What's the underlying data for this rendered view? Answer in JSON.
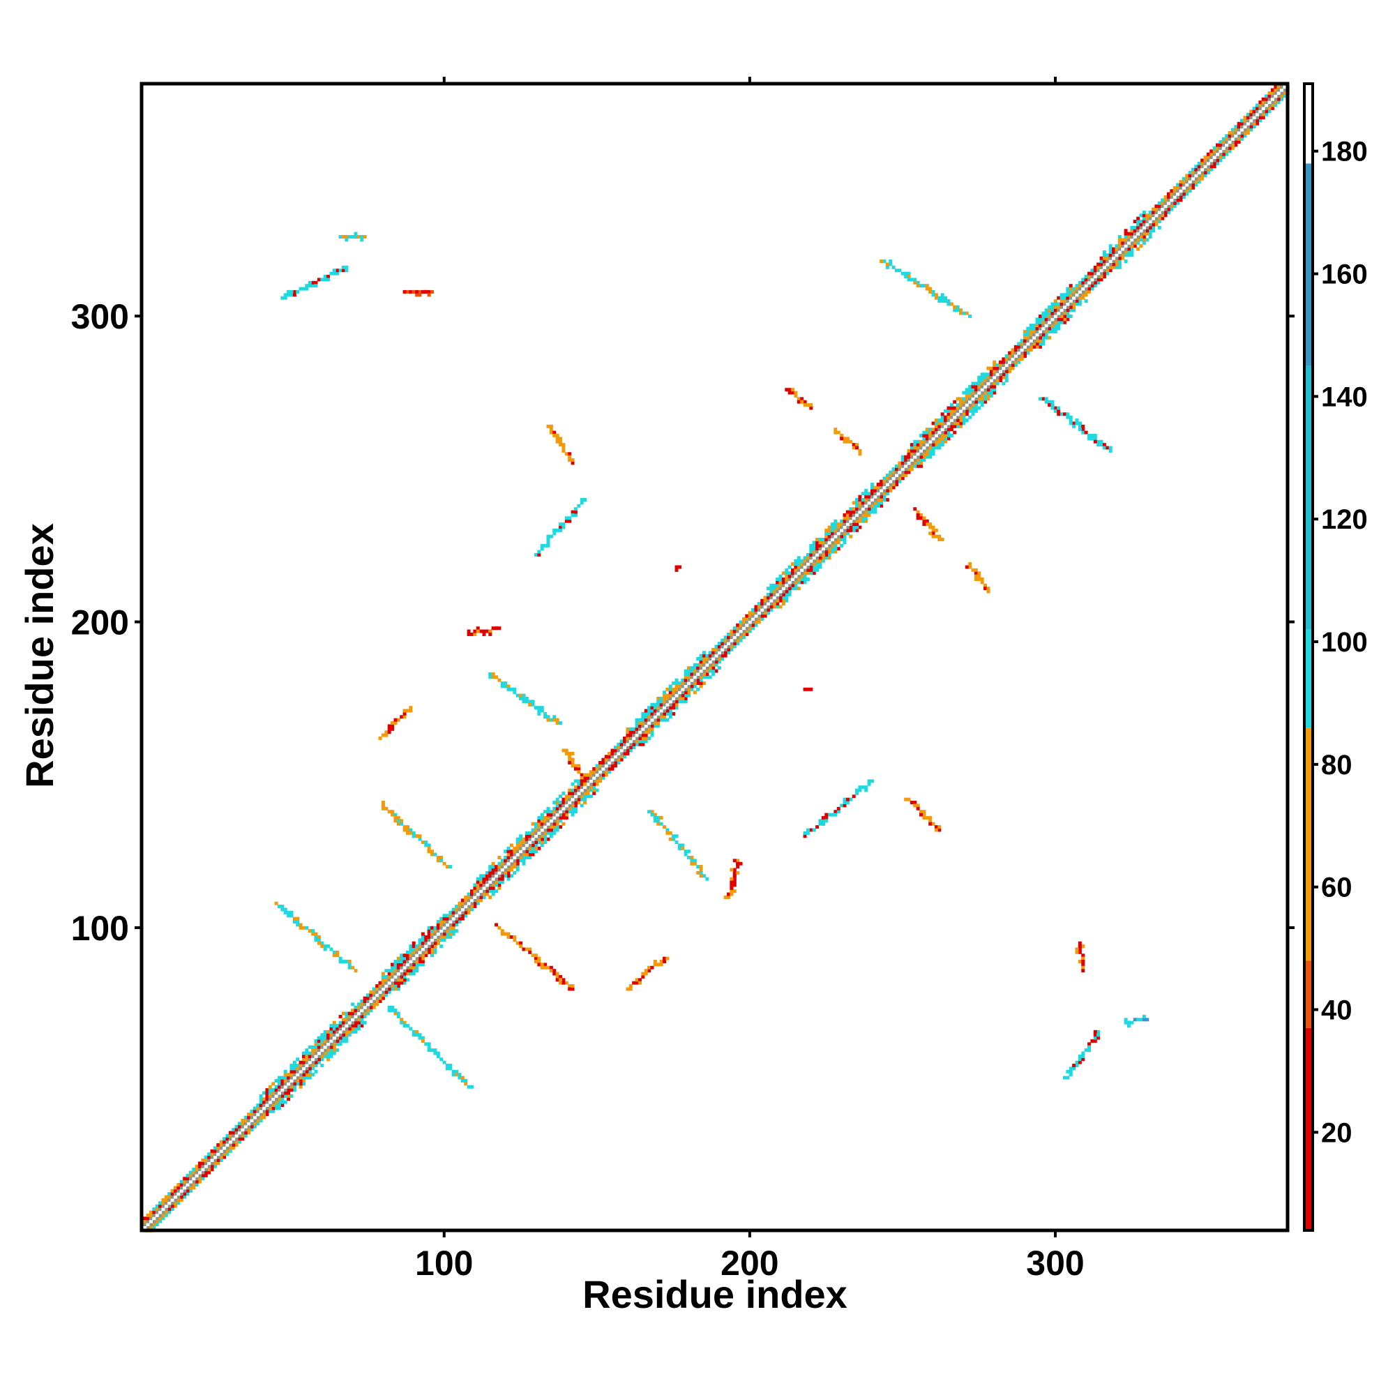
{
  "chart_data": {
    "type": "heatmap",
    "title": "",
    "xlabel": "Residue index",
    "ylabel": "Residue index",
    "xlim": [
      1,
      376
    ],
    "ylim": [
      1,
      376
    ],
    "x_ticks": [
      100,
      200,
      300
    ],
    "y_ticks": [
      100,
      200,
      300
    ],
    "x_tick_labels": [
      "100",
      "200",
      "300"
    ],
    "y_tick_labels": [
      "100",
      "200",
      "300"
    ],
    "grid": false,
    "legend": "colorbar-right",
    "colorbar": {
      "range": [
        4,
        191
      ],
      "ticks": [
        "20",
        "40",
        "60",
        "80",
        "100",
        "120",
        "140",
        "160",
        "180"
      ],
      "bands": [
        {
          "from": 4,
          "to": 37,
          "color": "#e00000"
        },
        {
          "from": 37,
          "to": 48,
          "color": "#e8540c"
        },
        {
          "from": 48,
          "to": 86,
          "color": "#f29a0a"
        },
        {
          "from": 86,
          "to": 102,
          "color": "#1ed9e0"
        },
        {
          "from": 102,
          "to": 145,
          "color": "#21bcd0"
        },
        {
          "from": 145,
          "to": 178,
          "color": "#3a95c6"
        },
        {
          "from": 178,
          "to": 191,
          "color": "#ffffff"
        }
      ]
    },
    "diagonal": {
      "from": 1,
      "to": 376,
      "core_color": "#8a9488",
      "band_colors": [
        "#e00000",
        "#f29a0a",
        "#1ed9e0"
      ],
      "dense_ranges": [
        [
          40,
          70
        ],
        [
          80,
          100
        ],
        [
          110,
          145
        ],
        [
          160,
          185
        ],
        [
          205,
          240
        ],
        [
          250,
          280
        ],
        [
          290,
          305
        ],
        [
          315,
          330
        ]
      ]
    },
    "contact_segments": [
      {
        "from": [
          48,
          306
        ],
        "to": [
          68,
          316
        ],
        "color": "#1ed9e0",
        "accent": "#e00000"
      },
      {
        "from": [
          66,
          326
        ],
        "to": [
          73,
          326
        ],
        "color": "#1ed9e0",
        "accent": "#f29a0a"
      },
      {
        "from": [
          88,
          308
        ],
        "to": [
          96,
          308
        ],
        "color": "#e8540c",
        "accent": "#e00000"
      },
      {
        "from": [
          244,
          318
        ],
        "to": [
          272,
          300
        ],
        "color": "#1ed9e0",
        "accent": "#f29a0a"
      },
      {
        "from": [
          212,
          276
        ],
        "to": [
          220,
          270
        ],
        "color": "#f29a0a",
        "accent": "#e00000"
      },
      {
        "from": [
          228,
          263
        ],
        "to": [
          236,
          256
        ],
        "color": "#f29a0a",
        "accent": "#e00000"
      },
      {
        "from": [
          296,
          273
        ],
        "to": [
          318,
          256
        ],
        "color": "#1ed9e0",
        "accent": "#e00000"
      },
      {
        "from": [
          134,
          264
        ],
        "to": [
          142,
          252
        ],
        "color": "#f29a0a",
        "accent": "#e00000"
      },
      {
        "from": [
          130,
          222
        ],
        "to": [
          146,
          240
        ],
        "color": "#1ed9e0",
        "accent": "#e00000"
      },
      {
        "from": [
          254,
          237
        ],
        "to": [
          262,
          227
        ],
        "color": "#f29a0a",
        "accent": "#e00000"
      },
      {
        "from": [
          272,
          218
        ],
        "to": [
          278,
          210
        ],
        "color": "#f29a0a",
        "accent": "#e00000"
      },
      {
        "from": [
          108,
          196
        ],
        "to": [
          118,
          198
        ],
        "color": "#e00000",
        "accent": "#f29a0a"
      },
      {
        "from": [
          115,
          183
        ],
        "to": [
          137,
          167
        ],
        "color": "#1ed9e0",
        "accent": "#f29a0a"
      },
      {
        "from": [
          79,
          162
        ],
        "to": [
          89,
          172
        ],
        "color": "#f29a0a",
        "accent": "#e00000"
      },
      {
        "from": [
          80,
          140
        ],
        "to": [
          101,
          120
        ],
        "color": "#f29a0a",
        "accent": "#1ed9e0"
      },
      {
        "from": [
          168,
          138
        ],
        "to": [
          186,
          116
        ],
        "color": "#1ed9e0",
        "accent": "#f29a0a"
      },
      {
        "from": [
          193,
          110
        ],
        "to": [
          196,
          122
        ],
        "color": "#e00000",
        "accent": "#f29a0a"
      },
      {
        "from": [
          218,
          130
        ],
        "to": [
          240,
          148
        ],
        "color": "#1ed9e0",
        "accent": "#e00000"
      },
      {
        "from": [
          252,
          142
        ],
        "to": [
          262,
          132
        ],
        "color": "#f29a0a",
        "accent": "#e00000"
      },
      {
        "from": [
          45,
          108
        ],
        "to": [
          71,
          86
        ],
        "color": "#1ed9e0",
        "accent": "#f29a0a"
      },
      {
        "from": [
          117,
          101
        ],
        "to": [
          142,
          80
        ],
        "color": "#f29a0a",
        "accent": "#e00000"
      },
      {
        "from": [
          160,
          80
        ],
        "to": [
          172,
          90
        ],
        "color": "#f29a0a",
        "accent": "#e00000"
      },
      {
        "from": [
          82,
          74
        ],
        "to": [
          108,
          48
        ],
        "color": "#1ed9e0",
        "accent": "#f29a0a"
      },
      {
        "from": [
          308,
          95
        ],
        "to": [
          309,
          87
        ],
        "color": "#e00000",
        "accent": "#f29a0a"
      },
      {
        "from": [
          304,
          51
        ],
        "to": [
          314,
          66
        ],
        "color": "#1ed9e0",
        "accent": "#e00000"
      },
      {
        "from": [
          323,
          69
        ],
        "to": [
          329,
          70
        ],
        "color": "#1ed9e0",
        "accent": "#3a95c6"
      },
      {
        "from": [
          176,
          218
        ],
        "to": [
          177,
          218
        ],
        "color": "#e00000",
        "accent": "#e00000"
      },
      {
        "from": [
          218,
          178
        ],
        "to": [
          219,
          178
        ],
        "color": "#e00000",
        "accent": "#e00000"
      },
      {
        "from": [
          140,
          158
        ],
        "to": [
          146,
          148
        ],
        "color": "#f29a0a",
        "accent": "#e00000"
      }
    ]
  }
}
